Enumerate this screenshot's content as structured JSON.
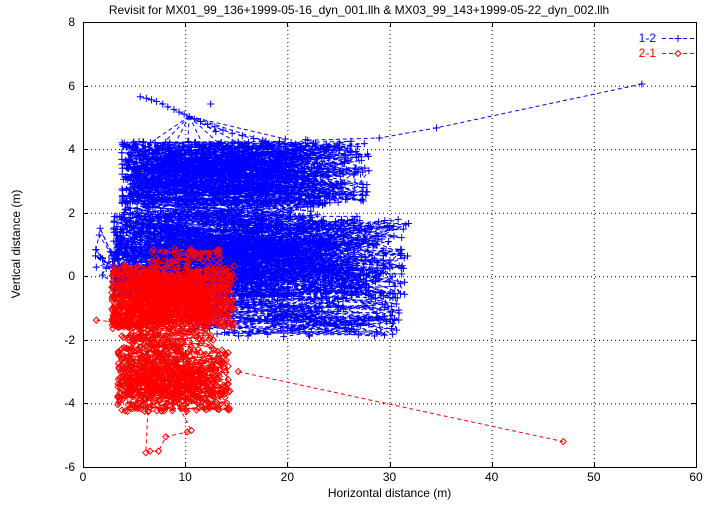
{
  "title": "Revisit for MX01_99_136+1999-05-16_dyn_001.llh & MX03_99_143+1999-05-22_dyn_002.llh",
  "axes": {
    "x": {
      "label": "Horizontal distance (m)",
      "min": 0,
      "max": 60,
      "ticks": [
        0,
        10,
        20,
        30,
        40,
        50,
        60
      ]
    },
    "y": {
      "label": "Vertical distance (m)",
      "min": -6,
      "max": 8,
      "ticks": [
        -6,
        -4,
        -2,
        0,
        2,
        4,
        6,
        8
      ]
    }
  },
  "legend": [
    {
      "label": "1-2",
      "color": "#0000ff",
      "marker": "plus"
    },
    {
      "label": "2-1",
      "color": "#ff0000",
      "marker": "diamond"
    }
  ],
  "colors": {
    "background": "#ffffff",
    "frame": "#000000",
    "grid": "#000000",
    "series1": "#0000ff",
    "series2": "#ff0000"
  },
  "chart_data": {
    "type": "scatter",
    "title": "Revisit for MX01_99_136+1999-05-16_dyn_001.llh & MX03_99_143+1999-05-22_dyn_002.llh",
    "xlabel": "Horizontal distance (m)",
    "ylabel": "Vertical distance (m)",
    "xlim": [
      0,
      60
    ],
    "ylim": [
      -6,
      8
    ],
    "xticks": [
      0,
      10,
      20,
      30,
      40,
      50,
      60
    ],
    "yticks": [
      -6,
      -4,
      -2,
      0,
      2,
      4,
      6,
      8
    ],
    "grid": true,
    "grid_style": "dotted",
    "legend_position": "top-right",
    "line_style": "dashed",
    "seed": 7,
    "series": [
      {
        "name": "1-2",
        "color": "#0000ff",
        "marker": "plus",
        "marker_px": 7,
        "description": "Dense cloud of ~2000 connected points, x 1-32 m, y -1.9 to 5.7 m, densest between y 0 and 4; outlier chain rising to (54.7, 6.05)",
        "clusters": [
          {
            "count": 650,
            "x_min": 3.8,
            "x_range": 24.2,
            "x_pow": 1.35,
            "y_min": 2.25,
            "y_range": 2.0,
            "y_pow": 1
          },
          {
            "count": 850,
            "x_min": 3.0,
            "x_range": 29.0,
            "x_pow": 1.35,
            "y_min": -0.7,
            "y_range": 2.6,
            "y_pow": 1
          },
          {
            "count": 150,
            "x_min": 4.0,
            "x_range": 20.0,
            "x_pow": 1.0,
            "y_min": 1.6,
            "y_range": 1.0,
            "y_pow": 1
          },
          {
            "count": 170,
            "x_min": 10.0,
            "x_range": 21.0,
            "x_pow": 1.0,
            "y_min": -1.9,
            "y_range": 1.45,
            "y_pow": 1
          },
          {
            "count": 28,
            "x_min": 1.2,
            "x_range": 2.8,
            "x_pow": 1.0,
            "y_min": -0.3,
            "y_range": 1.9,
            "y_pow": 1
          }
        ],
        "polylines": [
          {
            "points": [
              [
                5.6,
                5.65
              ],
              [
                6.2,
                5.6
              ],
              [
                6.7,
                5.55
              ],
              [
                7.2,
                5.5
              ],
              [
                7.8,
                5.42
              ],
              [
                8.3,
                5.33
              ],
              [
                8.9,
                5.25
              ],
              [
                9.4,
                5.17
              ],
              [
                9.9,
                5.1
              ],
              [
                10.4,
                5.03
              ],
              [
                10.9,
                4.95
              ],
              [
                11.5,
                4.87
              ],
              [
                12.2,
                4.78
              ],
              [
                12.9,
                4.7
              ],
              [
                13.7,
                4.6
              ],
              [
                14.6,
                4.5
              ],
              [
                15.6,
                4.42
              ],
              [
                16.7,
                4.33
              ],
              [
                17.9,
                4.25
              ],
              [
                19.2,
                4.18
              ],
              [
                20.5,
                4.12
              ],
              [
                21.8,
                4.3
              ]
            ]
          },
          {
            "points": [
              [
                12.5,
                5.42
              ]
            ]
          },
          {
            "points": [
              [
                22.0,
                4.28
              ],
              [
                29.0,
                4.35
              ],
              [
                34.6,
                4.67
              ],
              [
                54.7,
                6.05
              ]
            ]
          }
        ],
        "fans": [
          {
            "hub": [
              10.4,
              5.03
            ],
            "targets": [
              [
                6.6,
                4.2
              ],
              [
                7.6,
                4.1
              ],
              [
                8.8,
                4.05
              ],
              [
                10.2,
                4.0
              ],
              [
                11.8,
                4.1
              ],
              [
                13.4,
                4.15
              ],
              [
                15.2,
                4.2
              ],
              [
                17.6,
                4.28
              ],
              [
                19.8,
                4.32
              ],
              [
                13.0,
                4.55
              ]
            ]
          }
        ]
      },
      {
        "name": "2-1",
        "color": "#ff0000",
        "marker": "diamond",
        "marker_px": 6,
        "description": "Dense cloud of ~1150 connected points, x 1-15 m, y -5.6 to 0.9 m, two lobes around y=-0.6 and y=-3.2; outlier chain falling to (47, -5.2)",
        "clusters": [
          {
            "count": 620,
            "x_min": 2.8,
            "x_range": 12.0,
            "x_pow": 1.15,
            "y_min": -1.65,
            "y_range": 2.0,
            "y_pow": 1
          },
          {
            "count": 30,
            "x_min": 6.5,
            "x_range": 7.0,
            "x_pow": 1.0,
            "y_min": 0.35,
            "y_range": 0.6,
            "y_pow": 1
          },
          {
            "count": 400,
            "x_min": 3.4,
            "x_range": 11.0,
            "x_pow": 1.2,
            "y_min": -4.25,
            "y_range": 2.0,
            "y_pow": 1
          },
          {
            "count": 90,
            "x_min": 3.8,
            "x_range": 9.2,
            "x_pow": 1.0,
            "y_min": -2.3,
            "y_range": 0.7,
            "y_pow": 1
          }
        ],
        "polylines": [
          {
            "points": [
              [
                6.35,
                -4.25
              ],
              [
                6.15,
                -5.55
              ],
              [
                6.55,
                -5.5
              ],
              [
                7.4,
                -5.5
              ],
              [
                8.1,
                -5.05
              ],
              [
                10.2,
                -4.9
              ],
              [
                10.6,
                -4.85
              ],
              [
                9.0,
                -3.85
              ]
            ]
          },
          {
            "points": [
              [
                1.3,
                -1.38
              ],
              [
                5.2,
                -1.5
              ]
            ]
          },
          {
            "points": [
              [
                15.2,
                -3.0
              ],
              [
                47.0,
                -5.2
              ]
            ]
          }
        ],
        "fans": []
      }
    ]
  }
}
